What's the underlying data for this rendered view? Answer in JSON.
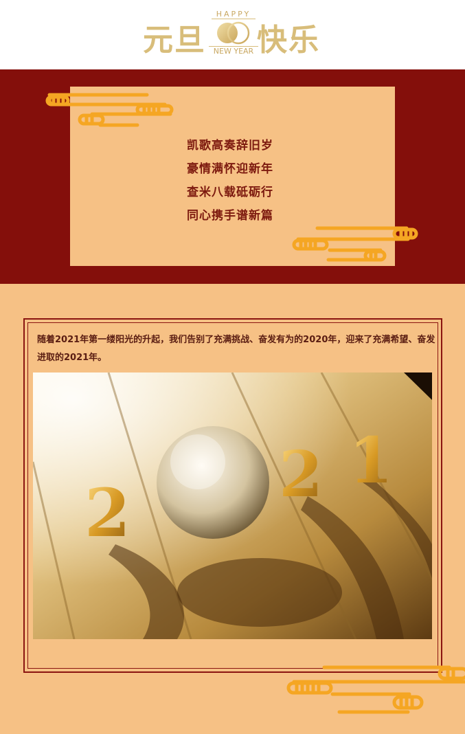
{
  "header": {
    "title_left": "元旦",
    "title_right": "快乐",
    "happy": "HAPPY",
    "new_year": "NEW YEAR"
  },
  "poem": {
    "lines": [
      "凯歌高奏辞旧岁",
      "豪情满怀迎新年",
      "查米八载砥砺行",
      "同心携手谱新篇"
    ]
  },
  "intro": {
    "text": "随着2021年第一缕阳光的升起，我们告别了充满挑战、奋发有为的2020年，迎来了充满希望、奋发进取的2021年。"
  },
  "photo": {
    "numerals": [
      "2",
      "2",
      "1"
    ]
  },
  "colors": {
    "background": "#f6c185",
    "band": "#840f0b",
    "gold": "#d8bd7a",
    "cloud": "#f5a623",
    "text": "#7d1a0f"
  }
}
